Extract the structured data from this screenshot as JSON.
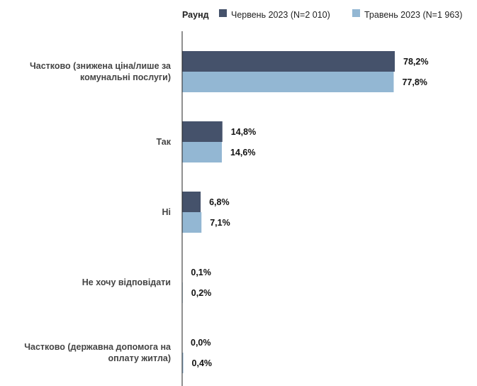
{
  "legend": {
    "title": "Раунд",
    "items": [
      {
        "label": "Червень 2023 (N=2 010)",
        "color": "#45526b"
      },
      {
        "label": "Травень 2023 (N=1 963)",
        "color": "#93b7d3"
      }
    ]
  },
  "chart_data": {
    "type": "bar",
    "orientation": "horizontal",
    "categories": [
      [
        "Частково (знижена ціна/лише за",
        "комунальні послуги)"
      ],
      [
        "Так"
      ],
      [
        "Ні"
      ],
      [
        "Не хочу відповідати"
      ],
      [
        "Частково (державна допомога на",
        "оплату житла)"
      ]
    ],
    "series": [
      {
        "name": "Червень 2023 (N=2 010)",
        "color": "#45526b",
        "values": [
          78.2,
          14.8,
          6.8,
          0.1,
          0.0
        ],
        "labels": [
          "78,2%",
          "14,8%",
          "6,8%",
          "0,1%",
          "0,0%"
        ]
      },
      {
        "name": "Травень 2023 (N=1 963)",
        "color": "#93b7d3",
        "values": [
          77.8,
          14.6,
          7.1,
          0.2,
          0.4
        ],
        "labels": [
          "77,8%",
          "14,6%",
          "7,1%",
          "0,2%",
          "0,4%"
        ]
      }
    ],
    "xlim": [
      0,
      100
    ],
    "grid": false,
    "legend_position": "top-right"
  }
}
